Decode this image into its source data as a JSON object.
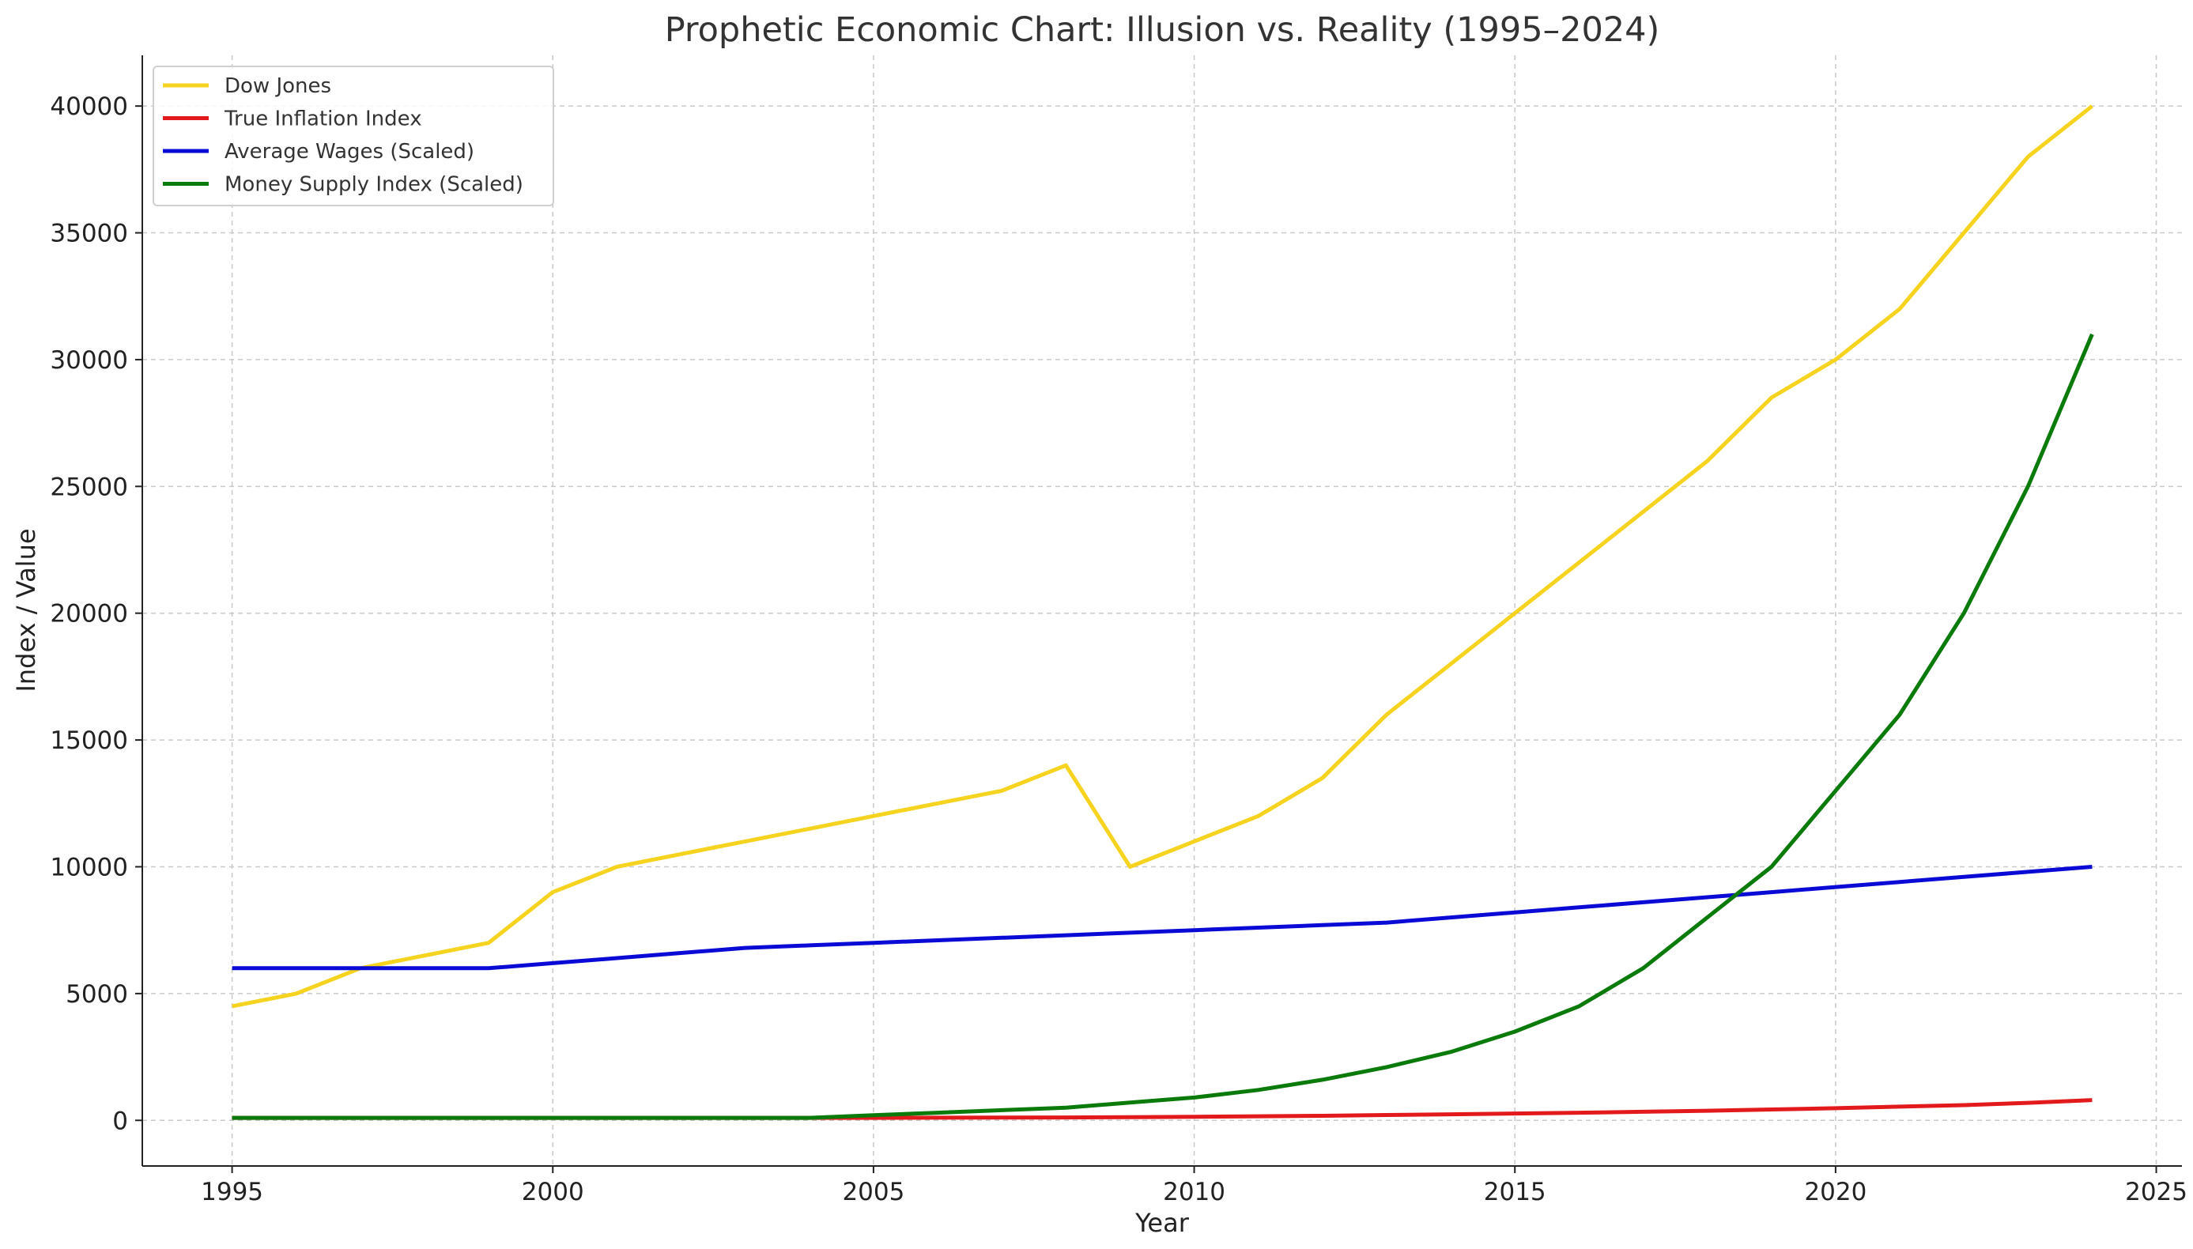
{
  "chart_data": {
    "type": "line",
    "title": "Prophetic Economic Chart: Illusion vs. Reality (1995–2024)",
    "xlabel": "Year",
    "ylabel": "Index / Value",
    "xlim": [
      1993.6,
      2025.4
    ],
    "ylim": [
      -1800,
      42000
    ],
    "xticks": [
      1995,
      2000,
      2005,
      2010,
      2015,
      2020,
      2025
    ],
    "yticks": [
      0,
      5000,
      10000,
      15000,
      20000,
      25000,
      30000,
      35000,
      40000
    ],
    "grid": true,
    "legend_position": "top-left",
    "x": [
      1995,
      1996,
      1997,
      1998,
      1999,
      2000,
      2001,
      2002,
      2003,
      2004,
      2005,
      2006,
      2007,
      2008,
      2009,
      2010,
      2011,
      2012,
      2013,
      2014,
      2015,
      2016,
      2017,
      2018,
      2019,
      2020,
      2021,
      2022,
      2023,
      2024
    ],
    "series": [
      {
        "name": "Dow Jones",
        "color": "#f5d31e",
        "values": [
          4500,
          5000,
          6000,
          6500,
          7000,
          9000,
          10000,
          10500,
          11000,
          11500,
          12000,
          12500,
          13000,
          14000,
          10000,
          11000,
          12000,
          13500,
          16000,
          18000,
          20000,
          22000,
          24000,
          26000,
          28500,
          30000,
          32000,
          35000,
          38000,
          40000
        ]
      },
      {
        "name": "True Inflation Index",
        "color": "#e31a1c",
        "values": [
          100,
          100,
          100,
          100,
          100,
          100,
          100,
          100,
          100,
          100,
          100,
          105,
          110,
          115,
          125,
          140,
          160,
          180,
          210,
          240,
          270,
          300,
          340,
          380,
          430,
          480,
          540,
          600,
          690,
          800
        ]
      },
      {
        "name": "Average Wages (Scaled)",
        "color": "#0a0ad6",
        "values": [
          6000,
          6000,
          6000,
          6000,
          6000,
          6200,
          6400,
          6600,
          6800,
          6900,
          7000,
          7100,
          7200,
          7300,
          7400,
          7500,
          7600,
          7700,
          7800,
          8000,
          8200,
          8400,
          8600,
          8800,
          9000,
          9200,
          9400,
          9600,
          9800,
          10000
        ]
      },
      {
        "name": "Money Supply Index (Scaled)",
        "color": "#0a7a0a",
        "values": [
          100,
          100,
          100,
          100,
          100,
          100,
          100,
          100,
          100,
          100,
          200,
          300,
          400,
          500,
          700,
          900,
          1200,
          1600,
          2100,
          2700,
          3500,
          4500,
          6000,
          8000,
          10000,
          13000,
          16000,
          20000,
          25000,
          31000
        ]
      }
    ]
  }
}
